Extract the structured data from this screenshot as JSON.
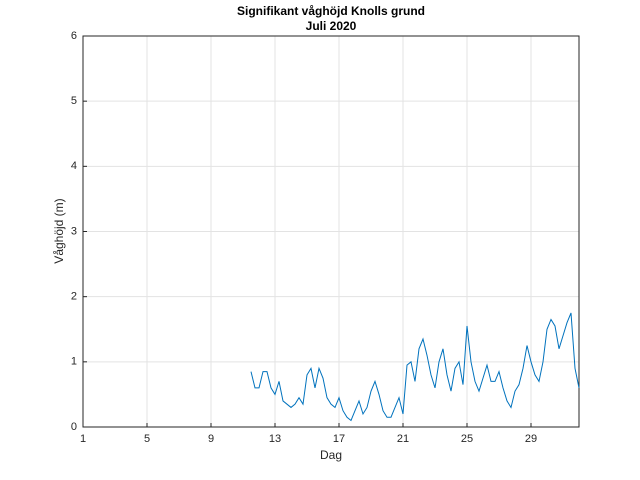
{
  "chart_data": {
    "type": "line",
    "title": "Signifikant våghöjd Knolls grund",
    "subtitle": "Juli 2020",
    "x_label": "Dag",
    "y_label": "Våghöjd (m)",
    "x": [
      11.5,
      11.75,
      12,
      12.25,
      12.5,
      12.75,
      13,
      13.25,
      13.5,
      13.75,
      14,
      14.25,
      14.5,
      14.75,
      15,
      15.25,
      15.5,
      15.75,
      16,
      16.25,
      16.5,
      16.75,
      17,
      17.25,
      17.5,
      17.75,
      18,
      18.25,
      18.5,
      18.75,
      19,
      19.25,
      19.5,
      19.75,
      20,
      20.25,
      20.5,
      20.75,
      21,
      21.25,
      21.5,
      21.75,
      22,
      22.25,
      22.5,
      22.75,
      23,
      23.25,
      23.5,
      23.75,
      24,
      24.25,
      24.5,
      24.75,
      25,
      25.25,
      25.5,
      25.75,
      26,
      26.25,
      26.5,
      26.75,
      27,
      27.25,
      27.5,
      27.75,
      28,
      28.25,
      28.5,
      28.75,
      29,
      29.25,
      29.5,
      29.75,
      30,
      30.25,
      30.5,
      30.75,
      31,
      31.25,
      31.5,
      31.75,
      32
    ],
    "series": [
      {
        "name": "Våghöjd",
        "color": "#0072BD",
        "values": [
          0.85,
          0.6,
          0.6,
          0.85,
          0.85,
          0.6,
          0.5,
          0.7,
          0.4,
          0.35,
          0.3,
          0.35,
          0.45,
          0.35,
          0.8,
          0.9,
          0.6,
          0.9,
          0.75,
          0.45,
          0.35,
          0.3,
          0.45,
          0.25,
          0.15,
          0.1,
          0.25,
          0.4,
          0.2,
          0.3,
          0.55,
          0.7,
          0.5,
          0.25,
          0.15,
          0.15,
          0.3,
          0.45,
          0.2,
          0.95,
          1.0,
          0.7,
          1.2,
          1.35,
          1.1,
          0.8,
          0.6,
          1.0,
          1.2,
          0.8,
          0.55,
          0.9,
          1.0,
          0.65,
          1.55,
          1.0,
          0.7,
          0.55,
          0.75,
          0.95,
          0.7,
          0.7,
          0.85,
          0.6,
          0.4,
          0.3,
          0.55,
          0.65,
          0.9,
          1.25,
          1.0,
          0.8,
          0.7,
          1.0,
          1.5,
          1.65,
          1.55,
          1.2,
          1.4,
          1.6,
          1.75,
          0.9,
          0.6
        ]
      }
    ],
    "xlim": [
      1,
      32
    ],
    "ylim": [
      0,
      6
    ],
    "xticks": [
      1,
      5,
      9,
      13,
      17,
      21,
      25,
      29
    ],
    "yticks": [
      0,
      1,
      2,
      3,
      4,
      5,
      6
    ],
    "grid": true
  }
}
